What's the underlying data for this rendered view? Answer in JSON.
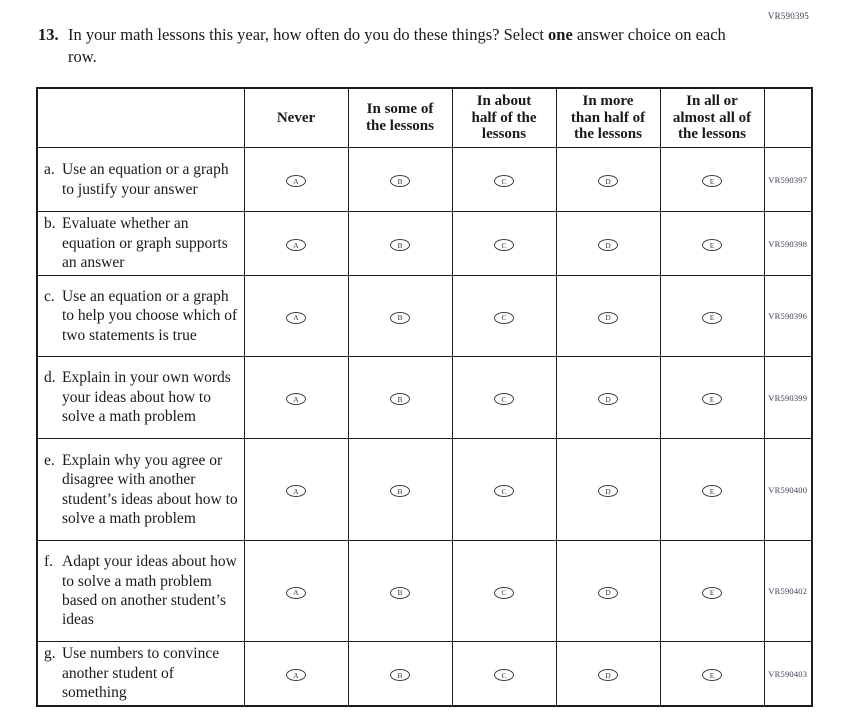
{
  "form_code": "VR590395",
  "question": {
    "number": "13.",
    "text_pre": "In your math lessons this year, how often do you do these things? Select ",
    "text_bold": "one",
    "text_post": " answer choice on each row."
  },
  "table": {
    "columns": [
      "Never",
      "In some of\nthe lessons",
      "In about\nhalf of the\nlessons",
      "In more\nthan half of\nthe lessons",
      "In all or\nalmost all of\nthe lessons"
    ],
    "options": [
      "A",
      "B",
      "C",
      "D",
      "E"
    ],
    "rows": [
      {
        "letter": "a.",
        "label": "Use an equation or a graph to justify your answer",
        "code": "VR590397"
      },
      {
        "letter": "b.",
        "label": "Evaluate whether an equation or graph supports an answer",
        "code": "VR590398"
      },
      {
        "letter": "c.",
        "label": "Use an equation or a graph to help you choose which of two statements is true",
        "code": "VR590396"
      },
      {
        "letter": "d.",
        "label": "Explain in your own words your ideas about how to solve a math problem",
        "code": "VR590399"
      },
      {
        "letter": "e.",
        "label": "Explain why you agree or disagree with another student’s ideas about how to solve a math problem",
        "code": "VR590400"
      },
      {
        "letter": "f.",
        "label": "Adapt your ideas about how to solve a math problem based on another student’s ideas",
        "code": "VR590402"
      },
      {
        "letter": "g.",
        "label": "Use numbers to convince another student of something",
        "code": "VR590403"
      }
    ]
  }
}
